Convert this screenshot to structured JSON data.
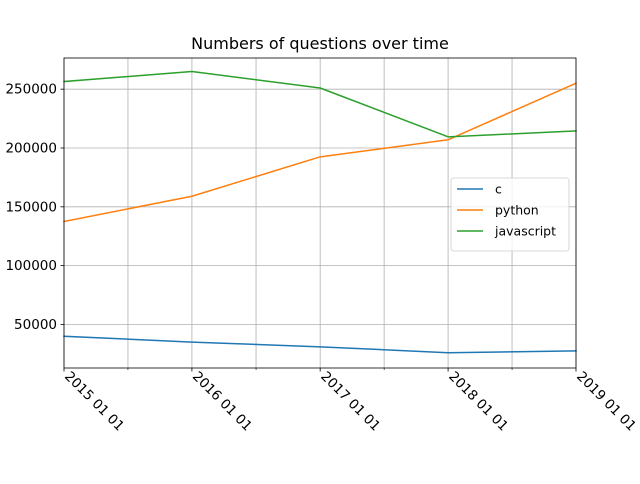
{
  "chart_data": {
    "type": "line",
    "title": "Numbers of questions over time",
    "xlabel": "",
    "ylabel": "",
    "x": [
      "2015 01 01",
      "2016 01 01",
      "2017 01 01",
      "2018 01 01",
      "2019 01 01"
    ],
    "xlim": [
      "2015 01 01",
      "2019 01 01"
    ],
    "ylim": [
      13000,
      276500
    ],
    "yticks": [
      50000,
      100000,
      150000,
      200000,
      250000
    ],
    "ytick_labels": [
      "50000",
      "100000",
      "150000",
      "200000",
      "250000"
    ],
    "grid": true,
    "legend_position": "center-right",
    "series": [
      {
        "name": "c",
        "color": "#1f77b4",
        "values": [
          40000,
          35000,
          31000,
          26000,
          27500
        ]
      },
      {
        "name": "python",
        "color": "#ff7f0e",
        "values": [
          137500,
          159000,
          192500,
          207000,
          255000
        ]
      },
      {
        "name": "javascript",
        "color": "#2ca02c",
        "values": [
          256500,
          265000,
          251000,
          209500,
          214500
        ]
      }
    ]
  }
}
